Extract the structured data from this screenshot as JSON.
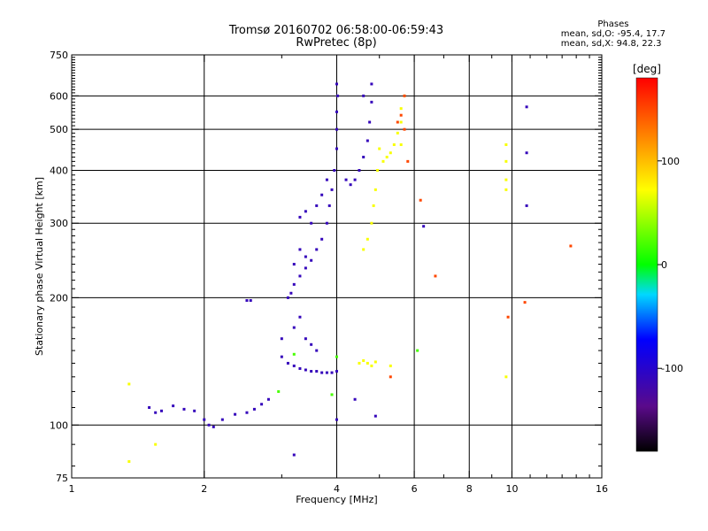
{
  "header": {
    "title_line1": "Tromsø 20160702 06:58:00-06:59:43",
    "title_line2": "RwPretec (8p)"
  },
  "phases": {
    "title": "Phases",
    "line_o": "mean, sd,O: -95.4, 17.7",
    "line_x": "mean, sd,X:  94.8, 22.3"
  },
  "chart_data": {
    "type": "scatter",
    "xlabel": "Frequency [MHz]",
    "ylabel": "Stationary phase Virtual Height [km]",
    "x_scale": "log",
    "y_scale": "log",
    "xlim": [
      1,
      16
    ],
    "ylim": [
      75,
      750
    ],
    "x_ticks": [
      1,
      2,
      4,
      6,
      8,
      10,
      16
    ],
    "x_ticklabels": [
      "1",
      "2",
      "4",
      "6",
      "8",
      "10",
      "16"
    ],
    "x_minor_ticks": [
      3,
      5,
      7,
      9,
      11,
      12,
      13,
      14,
      15
    ],
    "y_ticks": [
      75,
      100,
      200,
      300,
      400,
      500,
      600,
      750
    ],
    "y_ticklabels": [
      "75",
      "100",
      "200",
      "300",
      "400",
      "500",
      "600",
      "750"
    ],
    "grid_x": [
      2,
      4,
      6,
      8,
      10
    ],
    "grid_y": [
      100,
      200,
      300,
      400,
      500,
      600
    ],
    "colorbar": {
      "label": "[deg]",
      "range": [
        -180,
        180
      ],
      "ticks": [
        100,
        0,
        -100
      ],
      "ticklabels": [
        "100",
        "0",
        "-100"
      ]
    },
    "series": [
      {
        "color_deg": -110,
        "points": [
          [
            1.5,
            110
          ],
          [
            1.55,
            107
          ],
          [
            1.6,
            108
          ],
          [
            1.7,
            111
          ],
          [
            1.8,
            109
          ],
          [
            1.9,
            108
          ],
          [
            2.0,
            103
          ],
          [
            2.05,
            100
          ],
          [
            2.1,
            99
          ],
          [
            2.2,
            103
          ],
          [
            2.35,
            106
          ],
          [
            2.5,
            107
          ],
          [
            2.6,
            109
          ],
          [
            2.7,
            112
          ],
          [
            2.8,
            115
          ],
          [
            2.5,
            197
          ],
          [
            2.55,
            197
          ],
          [
            3.0,
            145
          ],
          [
            3.1,
            140
          ],
          [
            3.2,
            138
          ],
          [
            3.3,
            136
          ],
          [
            3.4,
            135
          ],
          [
            3.5,
            134
          ],
          [
            3.6,
            134
          ],
          [
            3.7,
            133
          ],
          [
            3.8,
            133
          ],
          [
            3.9,
            133
          ],
          [
            4.0,
            134
          ],
          [
            3.0,
            160
          ],
          [
            3.2,
            170
          ],
          [
            3.4,
            160
          ],
          [
            3.6,
            150
          ],
          [
            3.3,
            180
          ],
          [
            3.5,
            155
          ],
          [
            3.1,
            200
          ],
          [
            3.15,
            205
          ],
          [
            3.2,
            215
          ],
          [
            3.3,
            225
          ],
          [
            3.4,
            235
          ],
          [
            3.5,
            245
          ],
          [
            3.6,
            260
          ],
          [
            3.7,
            275
          ],
          [
            3.8,
            300
          ],
          [
            3.85,
            330
          ],
          [
            3.9,
            360
          ],
          [
            3.95,
            400
          ],
          [
            4.0,
            450
          ],
          [
            4.0,
            500
          ],
          [
            4.0,
            550
          ],
          [
            4.02,
            600
          ],
          [
            4.0,
            640
          ],
          [
            3.3,
            310
          ],
          [
            3.4,
            320
          ],
          [
            3.5,
            300
          ],
          [
            3.3,
            260
          ],
          [
            3.2,
            240
          ],
          [
            3.4,
            250
          ],
          [
            3.6,
            330
          ],
          [
            3.7,
            350
          ],
          [
            3.8,
            380
          ],
          [
            4.2,
            380
          ],
          [
            4.3,
            370
          ],
          [
            4.4,
            380
          ],
          [
            4.5,
            400
          ],
          [
            4.6,
            430
          ],
          [
            4.7,
            470
          ],
          [
            4.75,
            520
          ],
          [
            4.8,
            580
          ],
          [
            4.8,
            640
          ],
          [
            4.6,
            600
          ],
          [
            3.2,
            85
          ],
          [
            4.0,
            103
          ],
          [
            4.4,
            115
          ],
          [
            4.9,
            105
          ],
          [
            6.3,
            295
          ],
          [
            10.8,
            565
          ],
          [
            10.8,
            440
          ],
          [
            10.8,
            330
          ]
        ]
      },
      {
        "color_deg": 70,
        "points": [
          [
            4.5,
            140
          ],
          [
            4.6,
            142
          ],
          [
            4.7,
            140
          ],
          [
            4.8,
            138
          ],
          [
            4.9,
            141
          ],
          [
            5.3,
            138
          ],
          [
            4.6,
            260
          ],
          [
            4.7,
            275
          ],
          [
            4.8,
            300
          ],
          [
            4.85,
            330
          ],
          [
            4.9,
            360
          ],
          [
            4.95,
            400
          ],
          [
            5.2,
            430
          ],
          [
            5.3,
            440
          ],
          [
            5.4,
            460
          ],
          [
            5.5,
            490
          ],
          [
            5.6,
            520
          ],
          [
            5.6,
            560
          ],
          [
            5.7,
            600
          ],
          [
            5.6,
            460
          ],
          [
            5.0,
            450
          ],
          [
            5.1,
            420
          ],
          [
            1.35,
            125
          ],
          [
            1.35,
            82
          ],
          [
            1.55,
            90
          ],
          [
            9.7,
            460
          ],
          [
            9.7,
            420
          ],
          [
            9.7,
            380
          ],
          [
            9.7,
            360
          ],
          [
            9.7,
            130
          ]
        ]
      },
      {
        "color_deg": 150,
        "points": [
          [
            5.5,
            520
          ],
          [
            5.6,
            540
          ],
          [
            5.7,
            500
          ],
          [
            5.8,
            420
          ],
          [
            6.2,
            340
          ],
          [
            6.7,
            225
          ],
          [
            9.8,
            180
          ],
          [
            10.7,
            195
          ],
          [
            13.6,
            265
          ],
          [
            5.3,
            130
          ],
          [
            5.7,
            600
          ]
        ]
      },
      {
        "color_deg": 20,
        "points": [
          [
            2.95,
            120
          ],
          [
            3.2,
            147
          ],
          [
            3.9,
            118
          ],
          [
            4.0,
            145
          ],
          [
            6.1,
            150
          ]
        ]
      }
    ]
  }
}
